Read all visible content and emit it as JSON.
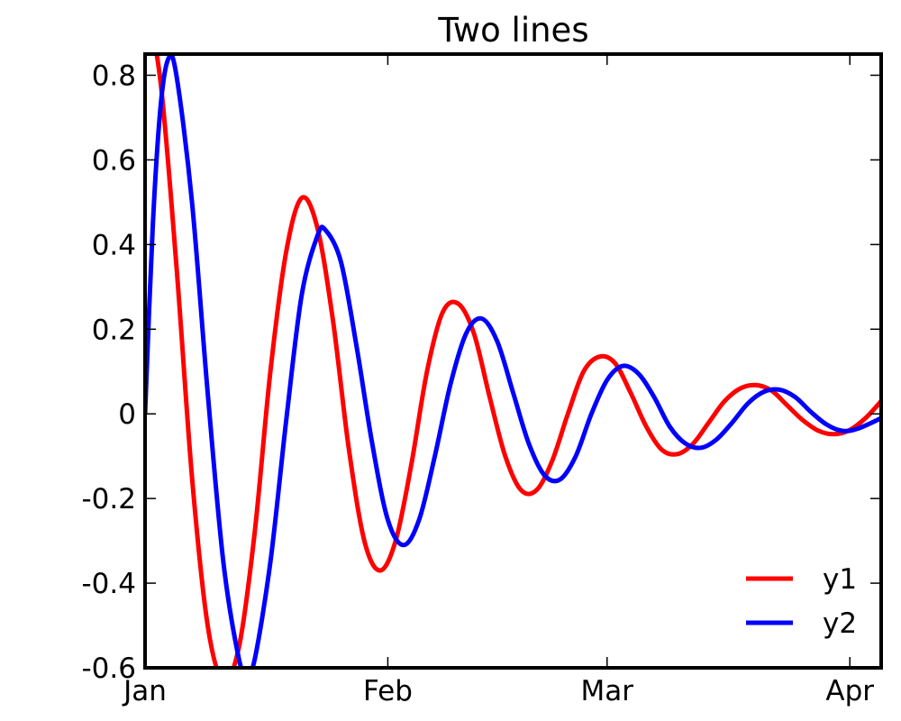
{
  "chart_data": {
    "type": "line",
    "title": "Two lines",
    "xlabel": "",
    "ylabel": "",
    "x_start": "2015-01-01",
    "x_end": "2015-04-05",
    "xlim": [
      "2015-01-01",
      "2015-04-05"
    ],
    "ylim": [
      -0.6,
      0.85
    ],
    "grid": false,
    "x_ticks": [
      {
        "date": "2015-01-01",
        "label": "Jan"
      },
      {
        "date": "2015-02-01",
        "label": "Feb"
      },
      {
        "date": "2015-03-01",
        "label": "Mar"
      },
      {
        "date": "2015-04-01",
        "label": "Apr"
      }
    ],
    "y_ticks": [
      {
        "value": -0.6,
        "label": "-0.6"
      },
      {
        "value": -0.4,
        "label": "-0.4"
      },
      {
        "value": -0.2,
        "label": "-0.2"
      },
      {
        "value": 0,
        "label": "0"
      },
      {
        "value": 0.2,
        "label": "0.2"
      },
      {
        "value": 0.4,
        "label": "0.4"
      },
      {
        "value": 0.6,
        "label": "0.6"
      },
      {
        "value": 0.8,
        "label": "0.8"
      }
    ],
    "legend_position": "lower-right",
    "series": [
      {
        "name": "y1",
        "color": "#ff0000",
        "points": [
          {
            "x": "2015-01-01",
            "y": 1.0
          },
          {
            "x": "2015-01-03",
            "y": 0.78
          },
          {
            "x": "2015-01-05",
            "y": 0.35
          },
          {
            "x": "2015-01-07",
            "y": -0.15
          },
          {
            "x": "2015-01-09",
            "y": -0.5
          },
          {
            "x": "2015-01-11",
            "y": -0.63
          },
          {
            "x": "2015-01-13",
            "y": -0.55
          },
          {
            "x": "2015-01-15",
            "y": -0.28
          },
          {
            "x": "2015-01-17",
            "y": 0.1
          },
          {
            "x": "2015-01-19",
            "y": 0.38
          },
          {
            "x": "2015-01-21",
            "y": 0.51
          },
          {
            "x": "2015-01-23",
            "y": 0.44
          },
          {
            "x": "2015-01-25",
            "y": 0.22
          },
          {
            "x": "2015-01-27",
            "y": -0.08
          },
          {
            "x": "2015-01-29",
            "y": -0.3
          },
          {
            "x": "2015-01-31",
            "y": -0.37
          },
          {
            "x": "2015-02-02",
            "y": -0.3
          },
          {
            "x": "2015-02-04",
            "y": -0.12
          },
          {
            "x": "2015-02-06",
            "y": 0.1
          },
          {
            "x": "2015-02-08",
            "y": 0.24
          },
          {
            "x": "2015-02-10",
            "y": 0.26
          },
          {
            "x": "2015-02-12",
            "y": 0.19
          },
          {
            "x": "2015-02-14",
            "y": 0.04
          },
          {
            "x": "2015-02-16",
            "y": -0.1
          },
          {
            "x": "2015-02-18",
            "y": -0.18
          },
          {
            "x": "2015-02-20",
            "y": -0.18
          },
          {
            "x": "2015-02-22",
            "y": -0.11
          },
          {
            "x": "2015-02-24",
            "y": 0.0
          },
          {
            "x": "2015-02-26",
            "y": 0.1
          },
          {
            "x": "2015-02-28",
            "y": 0.135
          },
          {
            "x": "2015-03-02",
            "y": 0.12
          },
          {
            "x": "2015-03-04",
            "y": 0.05
          },
          {
            "x": "2015-03-06",
            "y": -0.03
          },
          {
            "x": "2015-03-08",
            "y": -0.085
          },
          {
            "x": "2015-03-10",
            "y": -0.095
          },
          {
            "x": "2015-03-12",
            "y": -0.07
          },
          {
            "x": "2015-03-14",
            "y": -0.02
          },
          {
            "x": "2015-03-16",
            "y": 0.03
          },
          {
            "x": "2015-03-18",
            "y": 0.06
          },
          {
            "x": "2015-03-20",
            "y": 0.068
          },
          {
            "x": "2015-03-22",
            "y": 0.055
          },
          {
            "x": "2015-03-24",
            "y": 0.02
          },
          {
            "x": "2015-03-26",
            "y": -0.015
          },
          {
            "x": "2015-03-28",
            "y": -0.04
          },
          {
            "x": "2015-03-30",
            "y": -0.048
          },
          {
            "x": "2015-04-01",
            "y": -0.038
          },
          {
            "x": "2015-04-03",
            "y": -0.01
          },
          {
            "x": "2015-04-05",
            "y": 0.03
          }
        ]
      },
      {
        "name": "y2",
        "color": "#0000ff",
        "points": [
          {
            "x": "2015-01-01",
            "y": 0.0
          },
          {
            "x": "2015-01-02",
            "y": 0.45
          },
          {
            "x": "2015-01-03",
            "y": 0.73
          },
          {
            "x": "2015-01-04",
            "y": 0.84
          },
          {
            "x": "2015-01-05",
            "y": 0.8
          },
          {
            "x": "2015-01-07",
            "y": 0.5
          },
          {
            "x": "2015-01-09",
            "y": 0.05
          },
          {
            "x": "2015-01-11",
            "y": -0.35
          },
          {
            "x": "2015-01-13",
            "y": -0.58
          },
          {
            "x": "2015-01-14",
            "y": -0.61
          },
          {
            "x": "2015-01-15",
            "y": -0.58
          },
          {
            "x": "2015-01-17",
            "y": -0.35
          },
          {
            "x": "2015-01-19",
            "y": -0.02
          },
          {
            "x": "2015-01-21",
            "y": 0.28
          },
          {
            "x": "2015-01-23",
            "y": 0.42
          },
          {
            "x": "2015-01-24",
            "y": 0.435
          },
          {
            "x": "2015-01-26",
            "y": 0.36
          },
          {
            "x": "2015-01-28",
            "y": 0.16
          },
          {
            "x": "2015-01-30",
            "y": -0.07
          },
          {
            "x": "2015-02-01",
            "y": -0.25
          },
          {
            "x": "2015-02-03",
            "y": -0.31
          },
          {
            "x": "2015-02-05",
            "y": -0.25
          },
          {
            "x": "2015-02-07",
            "y": -0.1
          },
          {
            "x": "2015-02-09",
            "y": 0.07
          },
          {
            "x": "2015-02-11",
            "y": 0.19
          },
          {
            "x": "2015-02-13",
            "y": 0.225
          },
          {
            "x": "2015-02-15",
            "y": 0.17
          },
          {
            "x": "2015-02-17",
            "y": 0.05
          },
          {
            "x": "2015-02-19",
            "y": -0.07
          },
          {
            "x": "2015-02-21",
            "y": -0.145
          },
          {
            "x": "2015-02-23",
            "y": -0.155
          },
          {
            "x": "2015-02-25",
            "y": -0.1
          },
          {
            "x": "2015-02-27",
            "y": 0.0
          },
          {
            "x": "2015-03-01",
            "y": 0.08
          },
          {
            "x": "2015-03-03",
            "y": 0.113
          },
          {
            "x": "2015-03-05",
            "y": 0.095
          },
          {
            "x": "2015-03-07",
            "y": 0.04
          },
          {
            "x": "2015-03-09",
            "y": -0.03
          },
          {
            "x": "2015-03-11",
            "y": -0.07
          },
          {
            "x": "2015-03-13",
            "y": -0.08
          },
          {
            "x": "2015-03-15",
            "y": -0.06
          },
          {
            "x": "2015-03-17",
            "y": -0.02
          },
          {
            "x": "2015-03-19",
            "y": 0.025
          },
          {
            "x": "2015-03-21",
            "y": 0.052
          },
          {
            "x": "2015-03-23",
            "y": 0.057
          },
          {
            "x": "2015-03-25",
            "y": 0.04
          },
          {
            "x": "2015-03-27",
            "y": 0.005
          },
          {
            "x": "2015-03-29",
            "y": -0.025
          },
          {
            "x": "2015-03-31",
            "y": -0.04
          },
          {
            "x": "2015-04-02",
            "y": -0.035
          },
          {
            "x": "2015-04-05",
            "y": -0.01
          }
        ]
      }
    ]
  }
}
